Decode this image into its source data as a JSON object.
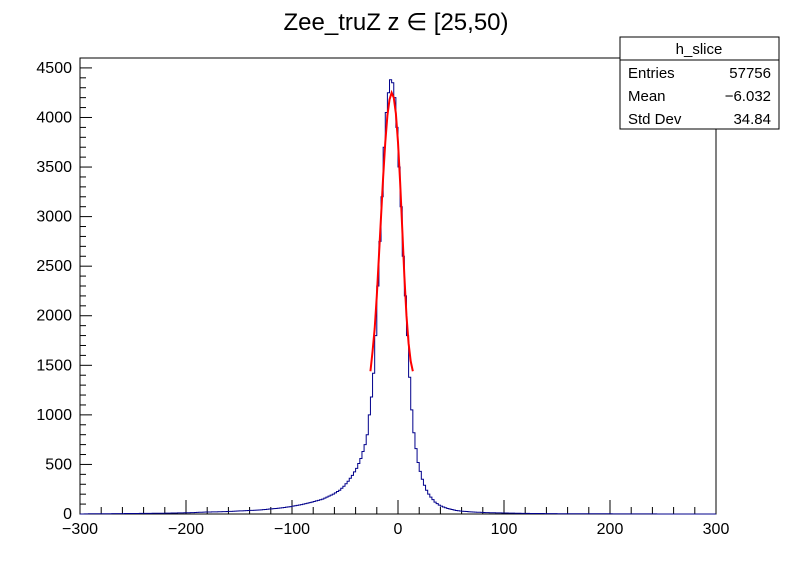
{
  "chart_data": {
    "type": "histogram",
    "title": "Zee_truZ z  ∈ [25,50)",
    "xlabel": "",
    "ylabel": "",
    "xlim": [
      -300,
      300
    ],
    "ylim": [
      0,
      4600
    ],
    "x_ticks": [
      -300,
      -200,
      -100,
      0,
      100,
      200,
      300
    ],
    "y_ticks": [
      0,
      500,
      1000,
      1500,
      2000,
      2500,
      3000,
      3500,
      4000,
      4500
    ],
    "grid": false,
    "histogram": {
      "color": "#00008b",
      "bin_width": 2,
      "bin_centers": [
        -299,
        -291,
        -281,
        -271,
        -261,
        -251,
        -241,
        -231,
        -221,
        -211,
        -201,
        -191,
        -181,
        -171,
        -161,
        -151,
        -141,
        -131,
        -121,
        -111,
        -101,
        -91,
        -81,
        -71,
        -61,
        -55,
        -51,
        -47,
        -43,
        -39,
        -35,
        -31,
        -29,
        -27,
        -25,
        -23,
        -21,
        -19,
        -17,
        -15,
        -13,
        -11,
        -9,
        -7,
        -5,
        -3,
        -1,
        1,
        3,
        5,
        7,
        9,
        11,
        13,
        15,
        17,
        19,
        21,
        23,
        25,
        27,
        29,
        31,
        35,
        39,
        43,
        47,
        51,
        55,
        61,
        71,
        81,
        91,
        101,
        111,
        121,
        131,
        141,
        151,
        161,
        171,
        181,
        191,
        201,
        211,
        221,
        231,
        241,
        251,
        261,
        271,
        281,
        291,
        299
      ],
      "counts": [
        0,
        2,
        3,
        3,
        4,
        5,
        6,
        7,
        8,
        10,
        12,
        15,
        20,
        22,
        25,
        30,
        35,
        40,
        50,
        60,
        75,
        95,
        120,
        150,
        200,
        240,
        280,
        330,
        390,
        460,
        560,
        700,
        800,
        1000,
        1180,
        1420,
        1800,
        2300,
        2750,
        3200,
        3700,
        4050,
        4250,
        4380,
        4350,
        4200,
        3900,
        3500,
        3100,
        2600,
        2200,
        1800,
        1380,
        1050,
        820,
        660,
        520,
        430,
        350,
        290,
        240,
        200,
        170,
        120,
        90,
        70,
        55,
        45,
        35,
        28,
        20,
        15,
        12,
        10,
        8,
        6,
        5,
        4,
        3,
        3,
        2,
        2,
        2,
        2,
        1,
        1,
        1,
        1,
        0,
        0,
        0,
        0,
        0,
        0
      ]
    },
    "fit": {
      "color": "#ff0000",
      "x": [
        -26,
        -24,
        -22,
        -20,
        -18,
        -16,
        -14,
        -12,
        -10,
        -8,
        -6,
        -4,
        -2,
        0,
        2,
        4,
        6,
        8,
        10,
        12,
        14
      ],
      "y": [
        1440,
        1640,
        1870,
        2200,
        2600,
        3000,
        3400,
        3750,
        4020,
        4180,
        4250,
        4200,
        4040,
        3750,
        3350,
        2880,
        2400,
        2000,
        1720,
        1540,
        1440
      ]
    }
  },
  "stats_box": {
    "title": "h_slice",
    "rows": [
      {
        "label": "Entries",
        "value": "57756"
      },
      {
        "label": "Mean",
        "value": "−6.032"
      },
      {
        "label": "Std Dev",
        "value": "34.84"
      }
    ]
  }
}
